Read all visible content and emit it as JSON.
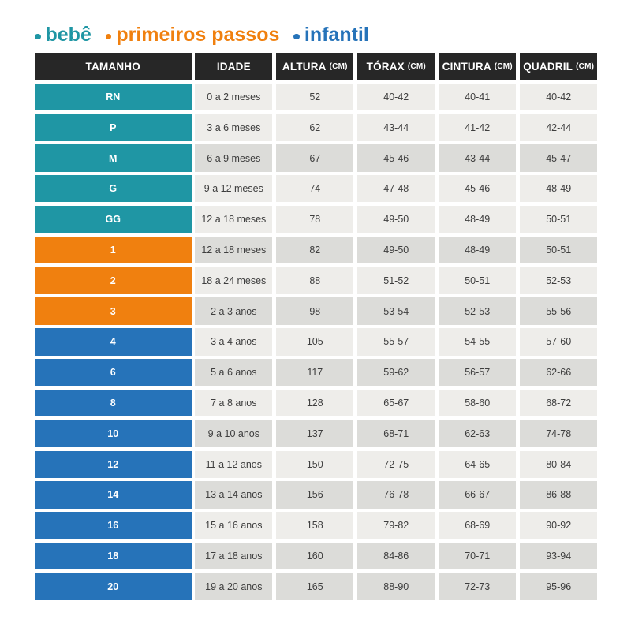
{
  "chart_data": {
    "type": "table",
    "title": "",
    "legend_entries": [
      "bebê",
      "primeiros passos",
      "infantil"
    ],
    "columns": [
      "TAMANHO",
      "IDADE",
      "ALTURA (CM)",
      "TÓRAX (CM)",
      "CINTURA (CM)",
      "QUADRIL (CM)"
    ],
    "rows": [
      [
        "RN",
        "0 a 2 meses",
        "52",
        "40-42",
        "40-41",
        "40-42"
      ],
      [
        "P",
        "3 a 6 meses",
        "62",
        "43-44",
        "41-42",
        "42-44"
      ],
      [
        "M",
        "6 a 9 meses",
        "67",
        "45-46",
        "43-44",
        "45-47"
      ],
      [
        "G",
        "9 a 12 meses",
        "74",
        "47-48",
        "45-46",
        "48-49"
      ],
      [
        "GG",
        "12 a 18 meses",
        "78",
        "49-50",
        "48-49",
        "50-51"
      ],
      [
        "1",
        "12 a 18 meses",
        "82",
        "49-50",
        "48-49",
        "50-51"
      ],
      [
        "2",
        "18 a 24 meses",
        "88",
        "51-52",
        "50-51",
        "52-53"
      ],
      [
        "3",
        "2 a 3 anos",
        "98",
        "53-54",
        "52-53",
        "55-56"
      ],
      [
        "4",
        "3 a 4 anos",
        "105",
        "55-57",
        "54-55",
        "57-60"
      ],
      [
        "6",
        "5 a 6 anos",
        "117",
        "59-62",
        "56-57",
        "62-66"
      ],
      [
        "8",
        "7 a 8 anos",
        "128",
        "65-67",
        "58-60",
        "68-72"
      ],
      [
        "10",
        "9 a 10 anos",
        "137",
        "68-71",
        "62-63",
        "74-78"
      ],
      [
        "12",
        "11 a 12 anos",
        "150",
        "72-75",
        "64-65",
        "80-84"
      ],
      [
        "14",
        "13 a 14 anos",
        "156",
        "76-78",
        "66-67",
        "86-88"
      ],
      [
        "16",
        "15 a 16 anos",
        "158",
        "79-82",
        "68-69",
        "90-92"
      ],
      [
        "18",
        "17 a 18 anos",
        "160",
        "84-86",
        "70-71",
        "93-94"
      ],
      [
        "20",
        "19 a 20 anos",
        "165",
        "88-90",
        "72-73",
        "95-96"
      ]
    ],
    "row_groups": {
      "bebê": [
        "RN",
        "P",
        "M",
        "G",
        "GG"
      ],
      "primeiros passos": [
        "1",
        "2",
        "3"
      ],
      "infantil": [
        "4",
        "6",
        "8",
        "10",
        "12",
        "14",
        "16",
        "18",
        "20"
      ]
    }
  },
  "legend": {
    "items": [
      {
        "label": "bebê",
        "group": "bebe"
      },
      {
        "label": "primeiros passos",
        "group": "primeiros_passos"
      },
      {
        "label": "infantil",
        "group": "infantil"
      }
    ]
  },
  "colors": {
    "bebe": "#1f96a4",
    "primeiros_passos": "#f0800f",
    "infantil": "#2673b9",
    "header_bg": "#272727",
    "row_light": "#eeedea",
    "row_dark": "#dcdcd9",
    "text_dark": "#3e3e3e",
    "text_white": "#ffffff"
  },
  "table": {
    "columns": [
      {
        "id": "tamanho",
        "label": "TAMANHO",
        "unit": ""
      },
      {
        "id": "idade",
        "label": "IDADE",
        "unit": ""
      },
      {
        "id": "altura",
        "label": "ALTURA",
        "unit": "(CM)"
      },
      {
        "id": "torax",
        "label": "TÓRAX",
        "unit": "(CM)"
      },
      {
        "id": "cintura",
        "label": "CINTURA",
        "unit": "(CM)"
      },
      {
        "id": "quadril",
        "label": "QUADRIL",
        "unit": "(CM)"
      }
    ],
    "rows": [
      {
        "tamanho": "RN",
        "group": "bebe",
        "shade": "light",
        "idade": "0 a 2 meses",
        "altura": "52",
        "torax": "40-42",
        "cintura": "40-41",
        "quadril": "40-42"
      },
      {
        "tamanho": "P",
        "group": "bebe",
        "shade": "light",
        "idade": "3 a 6 meses",
        "altura": "62",
        "torax": "43-44",
        "cintura": "41-42",
        "quadril": "42-44"
      },
      {
        "tamanho": "M",
        "group": "bebe",
        "shade": "dark",
        "idade": "6 a 9 meses",
        "altura": "67",
        "torax": "45-46",
        "cintura": "43-44",
        "quadril": "45-47"
      },
      {
        "tamanho": "G",
        "group": "bebe",
        "shade": "light",
        "idade": "9 a 12 meses",
        "altura": "74",
        "torax": "47-48",
        "cintura": "45-46",
        "quadril": "48-49"
      },
      {
        "tamanho": "GG",
        "group": "bebe",
        "shade": "light",
        "idade": "12 a 18 meses",
        "altura": "78",
        "torax": "49-50",
        "cintura": "48-49",
        "quadril": "50-51"
      },
      {
        "tamanho": "1",
        "group": "primeiros_passos",
        "shade": "dark",
        "idade": "12 a 18 meses",
        "altura": "82",
        "torax": "49-50",
        "cintura": "48-49",
        "quadril": "50-51"
      },
      {
        "tamanho": "2",
        "group": "primeiros_passos",
        "shade": "light",
        "idade": "18 a 24 meses",
        "altura": "88",
        "torax": "51-52",
        "cintura": "50-51",
        "quadril": "52-53"
      },
      {
        "tamanho": "3",
        "group": "primeiros_passos",
        "shade": "dark",
        "idade": "2 a 3 anos",
        "altura": "98",
        "torax": "53-54",
        "cintura": "52-53",
        "quadril": "55-56"
      },
      {
        "tamanho": "4",
        "group": "infantil",
        "shade": "light",
        "idade": "3 a 4 anos",
        "altura": "105",
        "torax": "55-57",
        "cintura": "54-55",
        "quadril": "57-60"
      },
      {
        "tamanho": "6",
        "group": "infantil",
        "shade": "dark",
        "idade": "5 a 6 anos",
        "altura": "117",
        "torax": "59-62",
        "cintura": "56-57",
        "quadril": "62-66"
      },
      {
        "tamanho": "8",
        "group": "infantil",
        "shade": "light",
        "idade": "7 a 8 anos",
        "altura": "128",
        "torax": "65-67",
        "cintura": "58-60",
        "quadril": "68-72"
      },
      {
        "tamanho": "10",
        "group": "infantil",
        "shade": "dark",
        "idade": "9 a 10 anos",
        "altura": "137",
        "torax": "68-71",
        "cintura": "62-63",
        "quadril": "74-78"
      },
      {
        "tamanho": "12",
        "group": "infantil",
        "shade": "light",
        "idade": "11 a 12 anos",
        "altura": "150",
        "torax": "72-75",
        "cintura": "64-65",
        "quadril": "80-84"
      },
      {
        "tamanho": "14",
        "group": "infantil",
        "shade": "dark",
        "idade": "13 a 14 anos",
        "altura": "156",
        "torax": "76-78",
        "cintura": "66-67",
        "quadril": "86-88"
      },
      {
        "tamanho": "16",
        "group": "infantil",
        "shade": "light",
        "idade": "15 a 16 anos",
        "altura": "158",
        "torax": "79-82",
        "cintura": "68-69",
        "quadril": "90-92"
      },
      {
        "tamanho": "18",
        "group": "infantil",
        "shade": "dark",
        "idade": "17 a 18 anos",
        "altura": "160",
        "torax": "84-86",
        "cintura": "70-71",
        "quadril": "93-94"
      },
      {
        "tamanho": "20",
        "group": "infantil",
        "shade": "dark",
        "idade": "19 a 20 anos",
        "altura": "165",
        "torax": "88-90",
        "cintura": "72-73",
        "quadril": "95-96"
      }
    ]
  }
}
